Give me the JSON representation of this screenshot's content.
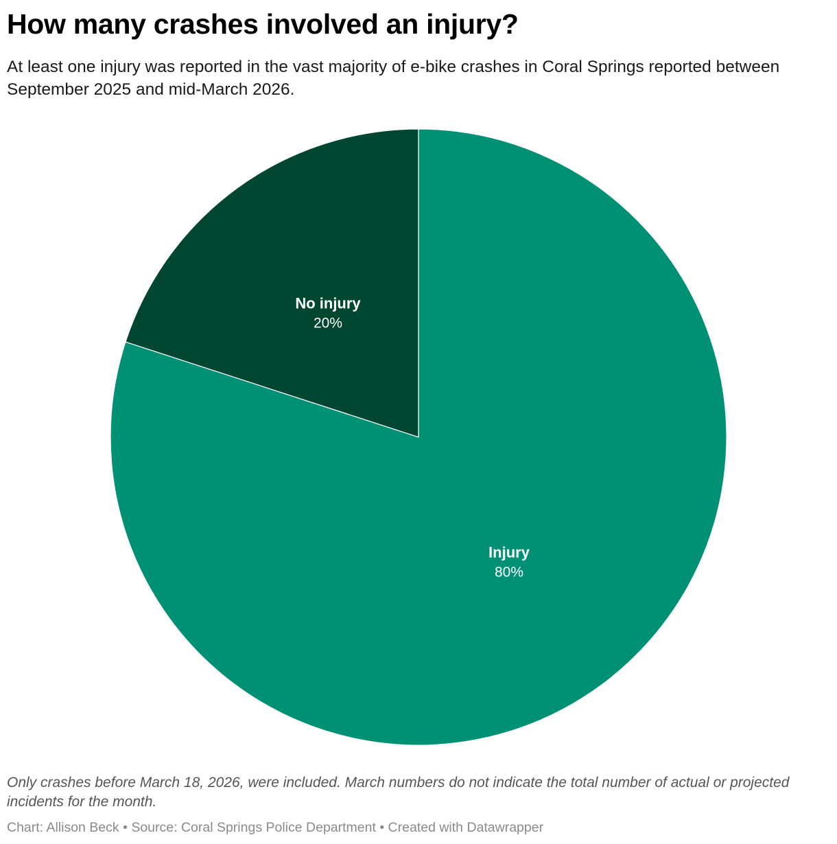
{
  "header": {
    "title": "How many crashes involved an injury?",
    "subtitle": "At least one injury was reported in the vast majority of e-bike crashes in Coral Springs reported between September 2025 and mid-March 2026."
  },
  "chart_data": {
    "type": "pie",
    "title": "How many crashes involved an injury?",
    "slices": [
      {
        "label": "Injury",
        "value": 80,
        "display": "80%",
        "color": "#009175"
      },
      {
        "label": "No injury",
        "value": 20,
        "display": "20%",
        "color": "#004631"
      }
    ],
    "legend": "none"
  },
  "footer": {
    "notes": "Only crashes before March 18, 2026, were included. March numbers do not indicate the total number of actual or projected incidents for the month.",
    "byline": "Chart: Allison Beck • Source: Coral Springs Police Department • Created with Datawrapper"
  }
}
